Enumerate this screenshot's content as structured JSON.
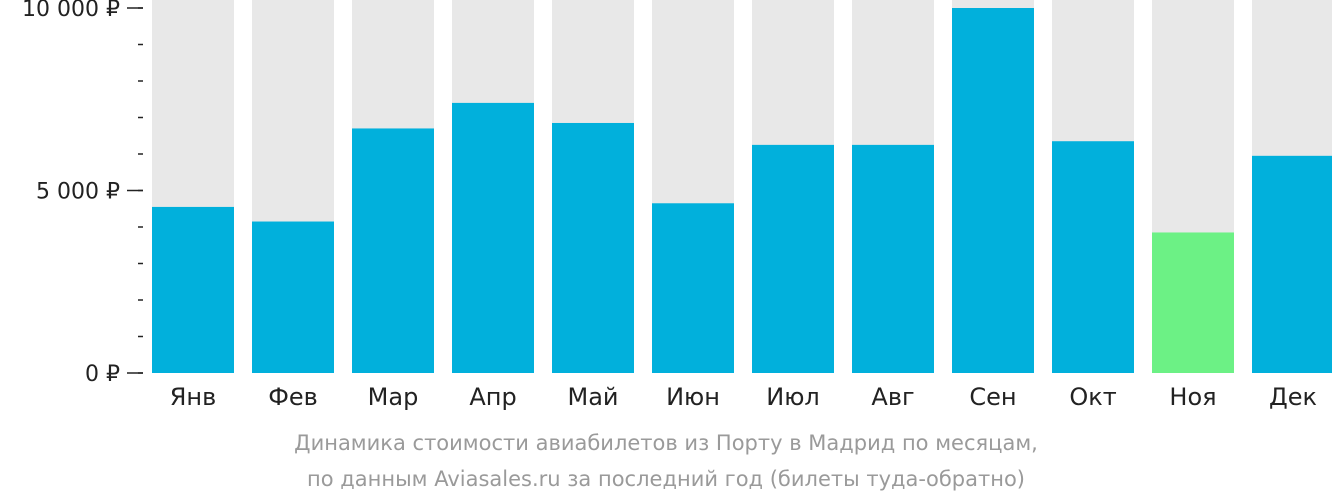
{
  "chart_data": {
    "type": "bar",
    "categories": [
      "Янв",
      "Фев",
      "Мар",
      "Апр",
      "Май",
      "Июн",
      "Июл",
      "Авг",
      "Сен",
      "Окт",
      "Ноя",
      "Дек"
    ],
    "values": [
      4550,
      4150,
      6700,
      7400,
      6850,
      4650,
      6250,
      6250,
      10000,
      6350,
      3850,
      5950
    ],
    "ylim": [
      0,
      10000
    ],
    "yticks": [
      {
        "value": 0,
        "label": "0 ₽"
      },
      {
        "value": 5000,
        "label": "5 000 ₽"
      },
      {
        "value": 10000,
        "label": "10 000 ₽"
      }
    ],
    "minor_tick_step": 1000,
    "highlight_index": 10,
    "colors": {
      "bar": "#01b0dc",
      "highlight": "#6cf185",
      "background_bar": "#e8e8e8",
      "axis": "#222222"
    }
  },
  "caption": {
    "line1": "Динамика стоимости авиабилетов из Порту в Мадрид по месяцам,",
    "line2": "по данным Aviasales.ru за последний год (билеты туда-обратно)"
  }
}
